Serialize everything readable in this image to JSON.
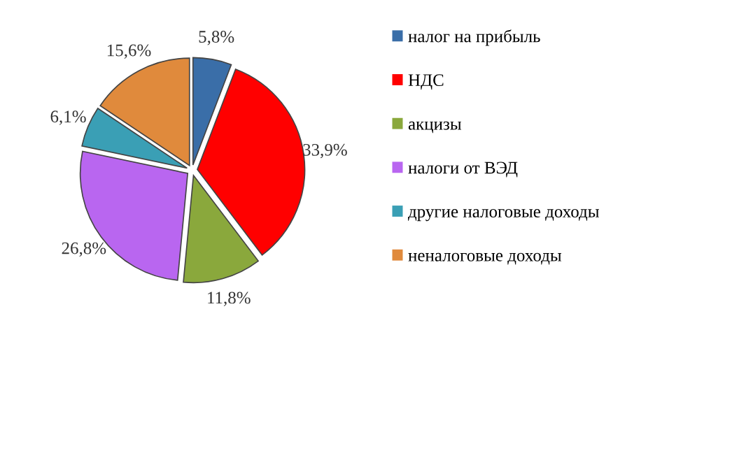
{
  "chart_data": {
    "type": "pie",
    "categories": [
      "налог на прибыль",
      "НДС",
      "акцизы",
      "налоги от ВЭД",
      "другие налоговые доходы",
      "неналоговые доходы"
    ],
    "values": [
      5.8,
      33.9,
      11.8,
      26.8,
      6.1,
      15.6
    ],
    "colors": [
      "#3a6ea8",
      "#ff0000",
      "#8aa83c",
      "#b966f0",
      "#3a9fb5",
      "#e08a3c"
    ],
    "value_labels": [
      "5,8%",
      "33,9%",
      "11,8%",
      "26,8%",
      "6,1%",
      "15,6%"
    ],
    "legend": "right"
  }
}
